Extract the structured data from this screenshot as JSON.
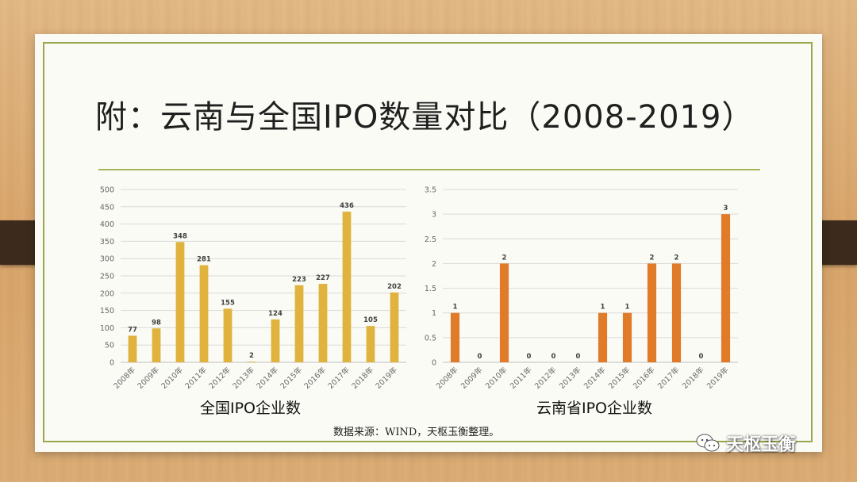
{
  "title": "附：云南与全国IPO数量对比（2008-2019）",
  "source_note": "数据来源：WIND，天枢玉衡整理。",
  "watermark": "天枢玉衡",
  "colors": {
    "national_bar": "#e0b33f",
    "yunnan_bar": "#e07b2a",
    "frame": "#9aa84b",
    "grid": "#d9d9d9"
  },
  "chart_data": [
    {
      "type": "bar",
      "title": "全国IPO企业数",
      "categories": [
        "2008年",
        "2009年",
        "2010年",
        "2011年",
        "2012年",
        "2013年",
        "2014年",
        "2015年",
        "2016年",
        "2017年",
        "2018年",
        "2019年"
      ],
      "values": [
        77,
        98,
        348,
        281,
        155,
        2,
        124,
        223,
        227,
        436,
        105,
        202
      ],
      "ylim": [
        0,
        500
      ],
      "yticks": [
        "0",
        "50",
        "100",
        "150",
        "200",
        "250",
        "300",
        "350",
        "400",
        "450",
        "500"
      ],
      "grid": true,
      "data_labels": true
    },
    {
      "type": "bar",
      "title": "云南省IPO企业数",
      "categories": [
        "2008年",
        "2009年",
        "2010年",
        "2011年",
        "2012年",
        "2013年",
        "2014年",
        "2015年",
        "2016年",
        "2017年",
        "2018年",
        "2019年"
      ],
      "values": [
        1,
        0,
        2,
        0,
        0,
        0,
        1,
        1,
        2,
        2,
        0,
        3
      ],
      "ylim": [
        0,
        3.5
      ],
      "yticks": [
        "0",
        "0.5",
        "1",
        "1.5",
        "2",
        "2.5",
        "3",
        "3.5"
      ],
      "grid": true,
      "data_labels": true
    }
  ]
}
